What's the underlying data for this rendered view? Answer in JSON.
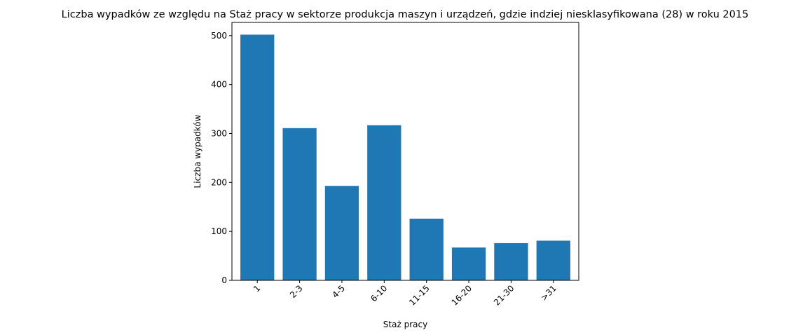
{
  "chart_data": {
    "type": "bar",
    "title": "Liczba wypadków ze względu na Staż pracy w sektorze produkcja maszyn i urządzeń, gdzie indziej niesklasyfikowana (28)  w roku 2015",
    "xlabel": "Staż pracy",
    "ylabel": "Liczba wypadków",
    "categories": [
      "1",
      "2-3",
      "4-5",
      "6-10",
      "11-15",
      "16-20",
      "21-30",
      ">31"
    ],
    "values": [
      502,
      311,
      193,
      317,
      126,
      67,
      76,
      81
    ],
    "ylim": [
      0,
      527
    ],
    "yticks": [
      0,
      100,
      200,
      300,
      400,
      500
    ],
    "yticks_labels": [
      "0",
      "100",
      "200",
      "300",
      "400",
      "500"
    ],
    "bar_color": "#1f77b4",
    "grid": false,
    "legend": "none"
  }
}
